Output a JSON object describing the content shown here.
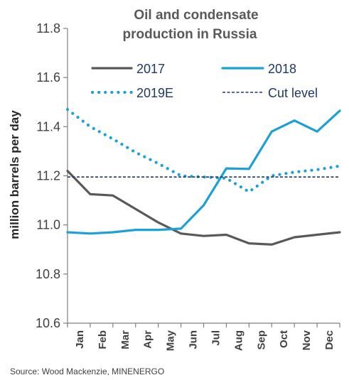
{
  "chart_data": {
    "type": "line",
    "title_lines": [
      "Oil and condensate",
      "production in Russia"
    ],
    "ylabel": "million barrels per day",
    "xlabel": "",
    "categories": [
      "Jan",
      "Feb",
      "Mar",
      "Apr",
      "May",
      "Jun",
      "Jul",
      "Aug",
      "Sep",
      "Oct",
      "Nov",
      "Dec"
    ],
    "ylim": [
      10.6,
      11.8
    ],
    "yticks": [
      "10.6",
      "10.8",
      "11.0",
      "11.2",
      "11.4",
      "11.6",
      "11.8"
    ],
    "grid": false,
    "legend_position": "top",
    "x_start_value": {
      "2017": 11.22,
      "2018": 10.97,
      "2019E": 11.47
    },
    "series": [
      {
        "name": "2017",
        "style": "solid",
        "color": "#595959",
        "values": [
          11.125,
          11.12,
          11.065,
          11.01,
          10.965,
          10.955,
          10.96,
          10.925,
          10.92,
          10.95,
          10.96,
          10.97
        ]
      },
      {
        "name": "2018",
        "style": "solid",
        "color": "#1BA1D5",
        "values": [
          10.965,
          10.97,
          10.98,
          10.98,
          10.985,
          11.08,
          11.23,
          11.228,
          11.38,
          11.425,
          11.38,
          11.465
        ]
      },
      {
        "name": "2019E",
        "style": "dotted",
        "color": "#1BA1D5",
        "values": [
          11.4,
          11.35,
          11.295,
          11.25,
          11.2,
          11.195,
          11.19,
          11.135,
          11.2,
          11.215,
          11.225,
          11.24
        ]
      },
      {
        "name": "Cut level",
        "style": "dashed",
        "color": "#1F3864",
        "values": [
          11.195,
          11.195,
          11.195,
          11.195,
          11.195,
          11.195,
          11.195,
          11.195,
          11.195,
          11.195,
          11.195,
          11.195
        ]
      }
    ],
    "source": "Source: Wood Mackenzie, MINENERGO"
  }
}
